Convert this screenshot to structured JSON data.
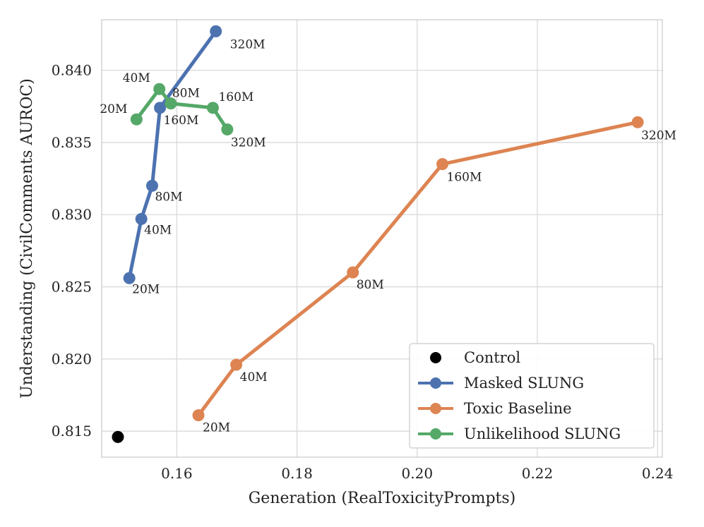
{
  "chart_data": {
    "type": "line",
    "xlabel": "Generation (RealToxicityPrompts)",
    "ylabel": "Understanding (CivilComments AUROC)",
    "xlim": [
      0.1475,
      0.2408
    ],
    "ylim": [
      0.8132,
      0.8435
    ],
    "xticks": [
      0.16,
      0.18,
      0.2,
      0.22,
      0.24
    ],
    "xtick_labels": [
      "0.16",
      "0.18",
      "0.20",
      "0.22",
      "0.24"
    ],
    "yticks": [
      0.815,
      0.82,
      0.825,
      0.83,
      0.835,
      0.84
    ],
    "ytick_labels": [
      "0.815",
      "0.820",
      "0.825",
      "0.830",
      "0.835",
      "0.840"
    ],
    "grid": true,
    "legend_position": "bottom-right",
    "series": [
      {
        "name": "Control",
        "color": "#000000",
        "style": "marker",
        "points": [
          {
            "x": 0.1502,
            "y": 0.8146,
            "label": ""
          }
        ]
      },
      {
        "name": "Masked SLUNG",
        "color": "#4c72b0",
        "style": "line",
        "points": [
          {
            "x": 0.1521,
            "y": 0.8256,
            "label": "20M"
          },
          {
            "x": 0.1541,
            "y": 0.8297,
            "label": "40M"
          },
          {
            "x": 0.1559,
            "y": 0.832,
            "label": "80M"
          },
          {
            "x": 0.1572,
            "y": 0.8374,
            "label": "160M"
          },
          {
            "x": 0.1665,
            "y": 0.8427,
            "label": "320M"
          }
        ]
      },
      {
        "name": "Toxic Baseline",
        "color": "#dd8452",
        "style": "line",
        "points": [
          {
            "x": 0.1636,
            "y": 0.8161,
            "label": "20M"
          },
          {
            "x": 0.1699,
            "y": 0.8196,
            "label": "40M"
          },
          {
            "x": 0.1893,
            "y": 0.826,
            "label": "80M"
          },
          {
            "x": 0.2042,
            "y": 0.8335,
            "label": "160M"
          },
          {
            "x": 0.2367,
            "y": 0.8364,
            "label": "320M"
          }
        ]
      },
      {
        "name": "Unlikelihood SLUNG",
        "color": "#55a868",
        "style": "line",
        "points": [
          {
            "x": 0.1533,
            "y": 0.8366,
            "label": "20M"
          },
          {
            "x": 0.1571,
            "y": 0.8387,
            "label": "40M"
          },
          {
            "x": 0.159,
            "y": 0.8377,
            "label": "80M"
          },
          {
            "x": 0.166,
            "y": 0.8374,
            "label": "160M"
          },
          {
            "x": 0.1684,
            "y": 0.8359,
            "label": "320M"
          }
        ]
      }
    ]
  }
}
